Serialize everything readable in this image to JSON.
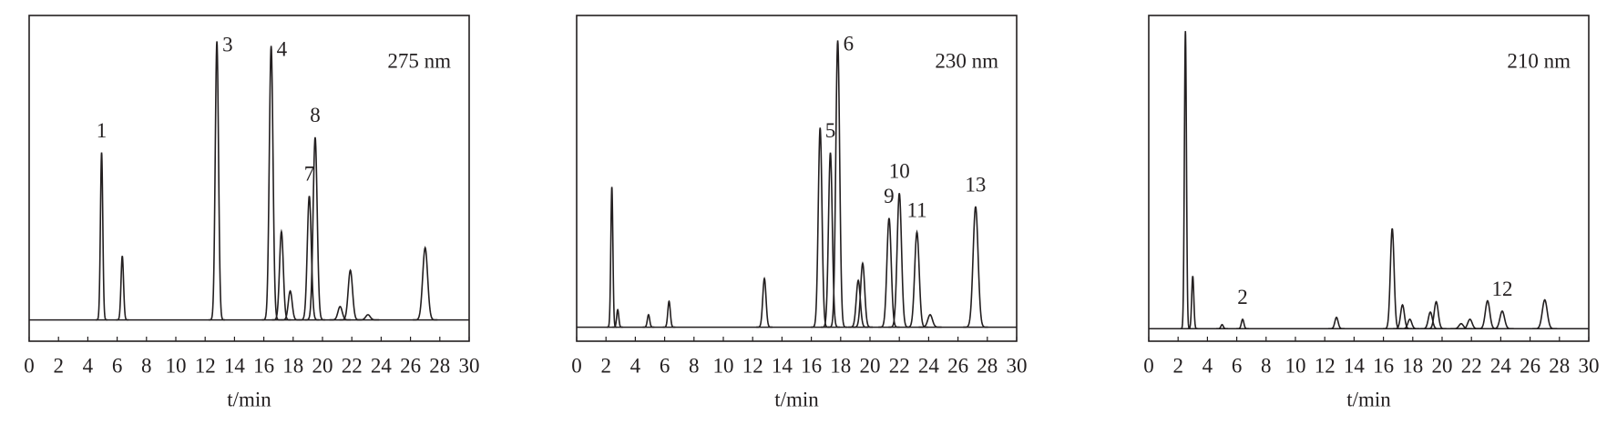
{
  "chart_data": [
    {
      "type": "chromatogram",
      "annotation": "275 nm",
      "xlabel": "t/min",
      "xlim": [
        0,
        30
      ],
      "ylim": [
        -7,
        100
      ],
      "xticks": [
        0,
        2,
        4,
        6,
        8,
        10,
        12,
        14,
        16,
        18,
        20,
        22,
        24,
        26,
        28,
        30
      ],
      "color": "#231f20",
      "x": [
        4.94,
        6.35,
        12.8,
        16.5,
        17.2,
        17.8,
        19.1,
        19.5,
        21.2,
        21.9,
        23.1,
        27.0
      ],
      "values": [
        55,
        21,
        91.5,
        90,
        29,
        9.5,
        40.7,
        60,
        4.4,
        16.3,
        1.7,
        23.7
      ],
      "peak_labels": [
        "1",
        null,
        "3",
        "4",
        null,
        null,
        "7",
        "8",
        null,
        null,
        null,
        null
      ]
    },
    {
      "type": "chromatogram",
      "annotation": "230 nm",
      "xlabel": "t/min",
      "xlim": [
        0,
        30
      ],
      "ylim": [
        -4.5,
        100
      ],
      "xticks": [
        0,
        2,
        4,
        6,
        8,
        10,
        12,
        14,
        16,
        18,
        20,
        22,
        24,
        26,
        28,
        30
      ],
      "color": "#231f20",
      "x": [
        2.4,
        2.8,
        4.9,
        6.3,
        12.8,
        16.6,
        17.3,
        17.8,
        19.2,
        19.5,
        21.3,
        22.0,
        23.2,
        24.1,
        27.2
      ],
      "values": [
        45,
        5.6,
        4,
        8.3,
        15.6,
        64,
        56,
        92,
        15,
        20.5,
        35,
        43,
        30.5,
        4,
        38.7
      ],
      "peak_labels": [
        null,
        null,
        null,
        null,
        null,
        null,
        "5",
        "6",
        null,
        null,
        "9",
        "10",
        "11",
        null,
        "13"
      ]
    },
    {
      "type": "chromatogram",
      "annotation": "210 nm",
      "xlabel": "t/min",
      "xlim": [
        0,
        30
      ],
      "ylim": [
        -4,
        100
      ],
      "xticks": [
        0,
        2,
        4,
        6,
        8,
        10,
        12,
        14,
        16,
        18,
        20,
        22,
        24,
        26,
        28,
        30
      ],
      "color": "#231f20",
      "x": [
        2.5,
        3.0,
        5.0,
        6.4,
        12.8,
        16.6,
        17.3,
        17.8,
        19.2,
        19.6,
        21.3,
        21.9,
        23.1,
        24.1,
        27.0
      ],
      "values": [
        95,
        16.8,
        1.3,
        3,
        3.6,
        32,
        7.6,
        3,
        5.3,
        8.6,
        1.6,
        3,
        8.9,
        5.6,
        9.2
      ],
      "peak_labels": [
        null,
        null,
        null,
        "2",
        null,
        null,
        null,
        null,
        null,
        null,
        null,
        null,
        null,
        "12",
        null
      ]
    }
  ]
}
